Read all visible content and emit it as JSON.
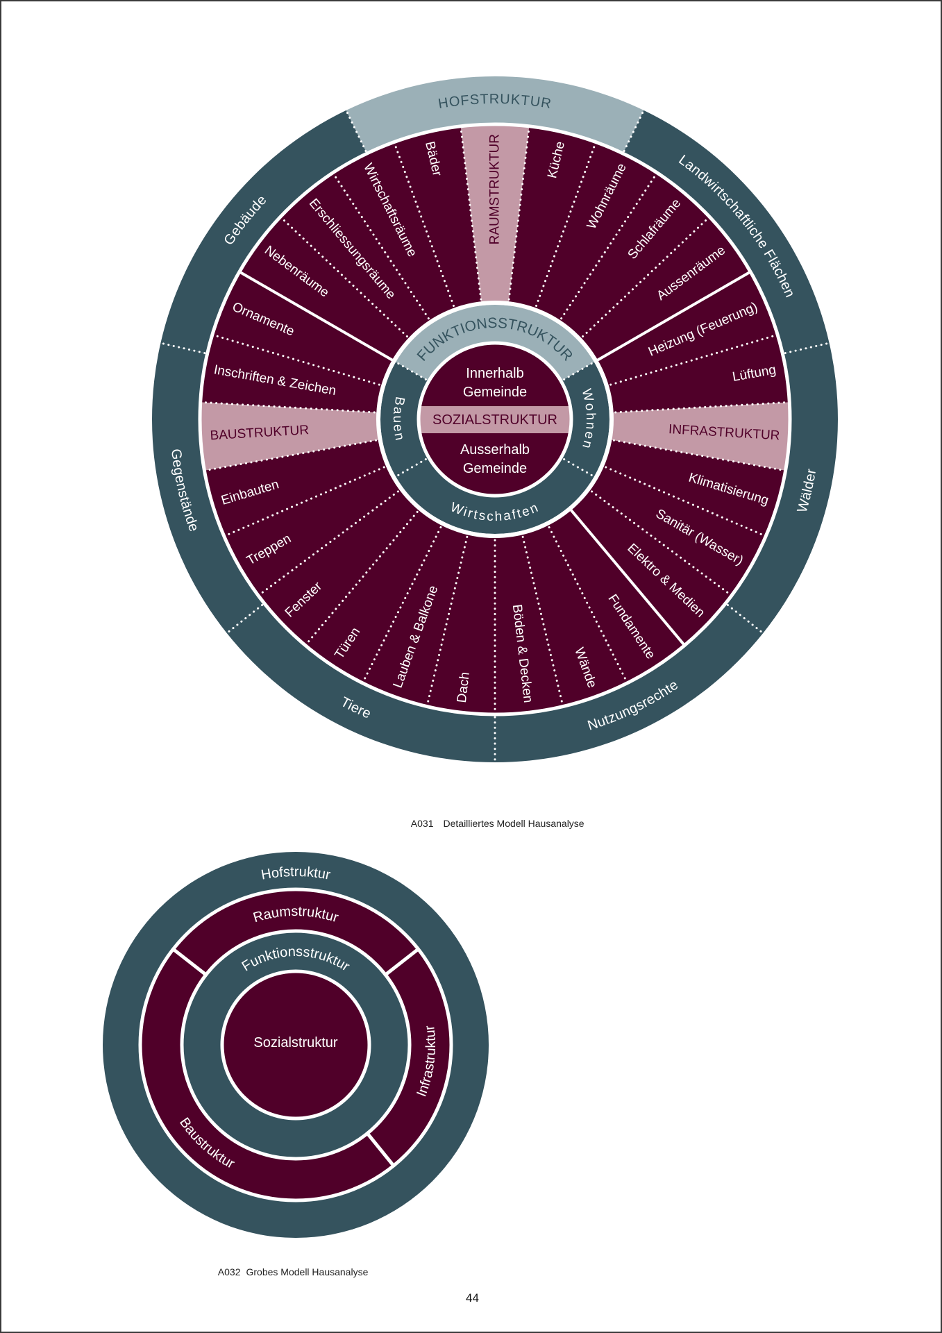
{
  "colors": {
    "maroon": "#500029",
    "teal": "#35535e",
    "light_teal": "#9bb0b7",
    "pink": "#c399a6",
    "white": "#ffffff"
  },
  "detailed_model": {
    "outer_ring": [
      {
        "label": "HOFSTRUKTUR",
        "highlight": true
      },
      {
        "label": "Landwirtschaftliche Flächen"
      },
      {
        "label": "Wälder"
      },
      {
        "label": "Nutzungsrechte"
      },
      {
        "label": "Tiere"
      },
      {
        "label": "Gegenstände"
      },
      {
        "label": "Gebäude"
      }
    ],
    "groups": [
      {
        "name": "Raumstruktur",
        "items": [
          {
            "label": "Nebenräume"
          },
          {
            "label": "Erschliessungsräume"
          },
          {
            "label": "Wirtschaftsräume"
          },
          {
            "label": "Bäder"
          },
          {
            "label": "RAUMSTRUKTUR",
            "band": true
          },
          {
            "label": "Küche"
          },
          {
            "label": "Wohnräume"
          },
          {
            "label": "Schlafräume"
          },
          {
            "label": "Aussenräume"
          }
        ]
      },
      {
        "name": "Infrastruktur",
        "items": [
          {
            "label": "Heizung (Feuerung)"
          },
          {
            "label": "Lüftung"
          },
          {
            "label": "INFRASTRUKTUR",
            "band": true
          },
          {
            "label": "Klimatisierung"
          },
          {
            "label": "Sanitär (Wasser)"
          },
          {
            "label": "Elektro & Medien"
          }
        ]
      },
      {
        "name": "Baustruktur",
        "items": [
          {
            "label": "Fundamente"
          },
          {
            "label": "Wände"
          },
          {
            "label": "Böden & Decken"
          },
          {
            "label": "Dach"
          },
          {
            "label": "Lauben & Balkone"
          },
          {
            "label": "Türen"
          },
          {
            "label": "Fenster"
          },
          {
            "label": "Treppen"
          },
          {
            "label": "Einbauten"
          },
          {
            "label": "BAUSTRUKTUR",
            "band": true
          },
          {
            "label": "Inschriften & Zeichen"
          },
          {
            "label": "Ornamente"
          }
        ]
      }
    ],
    "function_ring": [
      {
        "label": "FUNKTIONSSTRUKTUR",
        "highlight": true
      },
      {
        "label": "Wohnen"
      },
      {
        "label": "Wirtschaften"
      },
      {
        "label": "Bauen"
      }
    ],
    "center": {
      "top": [
        "Innerhalb",
        "Gemeinde"
      ],
      "band": "SOZIALSTRUKTUR",
      "bottom": [
        "Ausserhalb",
        "Gemeinde"
      ]
    },
    "caption": {
      "number": "A031",
      "text": "Detailliertes Modell Hausanalyse"
    }
  },
  "coarse_model": {
    "outer": "Hofstruktur",
    "ring": [
      "Raumstruktur",
      "Infrastruktur",
      "Baustruktur"
    ],
    "function": "Funktionsstruktur",
    "center": "Sozialstruktur",
    "caption": {
      "number": "A032",
      "text": "Grobes Modell Hausanalyse"
    }
  },
  "page_number": "44"
}
